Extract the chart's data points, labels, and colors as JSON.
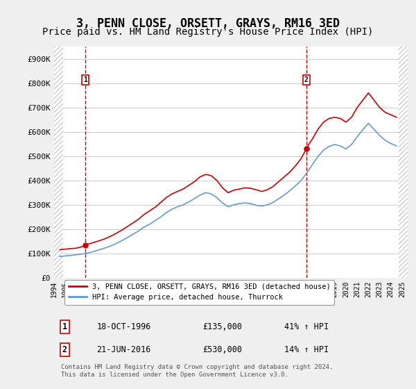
{
  "title": "3, PENN CLOSE, ORSETT, GRAYS, RM16 3ED",
  "subtitle": "Price paid vs. HM Land Registry's House Price Index (HPI)",
  "title_fontsize": 12,
  "subtitle_fontsize": 10,
  "ylabel_ticks": [
    "£0",
    "£100K",
    "£200K",
    "£300K",
    "£400K",
    "£500K",
    "£600K",
    "£700K",
    "£800K",
    "£900K"
  ],
  "ytick_values": [
    0,
    100000,
    200000,
    300000,
    400000,
    500000,
    600000,
    700000,
    800000,
    900000
  ],
  "ylim": [
    0,
    950000
  ],
  "xlim_start": 1994.0,
  "xlim_end": 2025.5,
  "xtick_years": [
    1994,
    1995,
    1996,
    1997,
    1998,
    1999,
    2000,
    2001,
    2002,
    2003,
    2004,
    2005,
    2006,
    2007,
    2008,
    2009,
    2010,
    2011,
    2012,
    2013,
    2014,
    2015,
    2016,
    2017,
    2018,
    2019,
    2020,
    2021,
    2022,
    2023,
    2024,
    2025
  ],
  "sale1_x": 1996.8,
  "sale1_y": 135000,
  "sale1_label": "1",
  "sale2_x": 2016.47,
  "sale2_y": 530000,
  "sale2_label": "2",
  "sale_color": "#cc0000",
  "hpi_color": "#6699cc",
  "vline_color": "#cc0000",
  "legend_label_red": "3, PENN CLOSE, ORSETT, GRAYS, RM16 3ED (detached house)",
  "legend_label_blue": "HPI: Average price, detached house, Thurrock",
  "table_row1": [
    "1",
    "18-OCT-1996",
    "£135,000",
    "41% ↑ HPI"
  ],
  "table_row2": [
    "2",
    "21-JUN-2016",
    "£530,000",
    "14% ↑ HPI"
  ],
  "footer": "Contains HM Land Registry data © Crown copyright and database right 2024.\nThis data is licensed under the Open Government Licence v3.0.",
  "background_color": "#f0f0f0",
  "plot_bg_color": "#ffffff",
  "hatch_color": "#dddddd",
  "red_line_data_x": [
    1994.5,
    1995.0,
    1995.5,
    1996.0,
    1996.5,
    1996.8,
    1997.0,
    1997.5,
    1998.0,
    1998.5,
    1999.0,
    1999.5,
    2000.0,
    2000.5,
    2001.0,
    2001.5,
    2002.0,
    2002.5,
    2003.0,
    2003.5,
    2004.0,
    2004.5,
    2005.0,
    2005.5,
    2006.0,
    2006.5,
    2007.0,
    2007.5,
    2008.0,
    2008.5,
    2009.0,
    2009.5,
    2010.0,
    2010.5,
    2011.0,
    2011.5,
    2012.0,
    2012.5,
    2013.0,
    2013.5,
    2014.0,
    2014.5,
    2015.0,
    2015.5,
    2016.0,
    2016.47,
    2016.5,
    2017.0,
    2017.5,
    2018.0,
    2018.5,
    2019.0,
    2019.5,
    2020.0,
    2020.5,
    2021.0,
    2021.5,
    2022.0,
    2022.5,
    2023.0,
    2023.5,
    2024.0,
    2024.5
  ],
  "red_line_data_y": [
    115000,
    118000,
    120000,
    122000,
    128000,
    135000,
    138000,
    145000,
    152000,
    160000,
    170000,
    182000,
    195000,
    210000,
    225000,
    240000,
    260000,
    275000,
    290000,
    310000,
    330000,
    345000,
    355000,
    365000,
    380000,
    395000,
    415000,
    425000,
    420000,
    400000,
    370000,
    350000,
    360000,
    365000,
    370000,
    368000,
    362000,
    355000,
    362000,
    375000,
    395000,
    415000,
    435000,
    460000,
    490000,
    530000,
    535000,
    570000,
    610000,
    640000,
    655000,
    660000,
    655000,
    640000,
    660000,
    700000,
    730000,
    760000,
    730000,
    700000,
    680000,
    670000,
    660000
  ],
  "blue_line_data_x": [
    1994.5,
    1995.0,
    1995.5,
    1996.0,
    1996.5,
    1997.0,
    1997.5,
    1998.0,
    1998.5,
    1999.0,
    1999.5,
    2000.0,
    2000.5,
    2001.0,
    2001.5,
    2002.0,
    2002.5,
    2003.0,
    2003.5,
    2004.0,
    2004.5,
    2005.0,
    2005.5,
    2006.0,
    2006.5,
    2007.0,
    2007.5,
    2008.0,
    2008.5,
    2009.0,
    2009.5,
    2010.0,
    2010.5,
    2011.0,
    2011.5,
    2012.0,
    2012.5,
    2013.0,
    2013.5,
    2014.0,
    2014.5,
    2015.0,
    2015.5,
    2016.0,
    2016.5,
    2017.0,
    2017.5,
    2018.0,
    2018.5,
    2019.0,
    2019.5,
    2020.0,
    2020.5,
    2021.0,
    2021.5,
    2022.0,
    2022.5,
    2023.0,
    2023.5,
    2024.0,
    2024.5
  ],
  "blue_line_data_y": [
    88000,
    90000,
    92000,
    95000,
    98000,
    102000,
    108000,
    115000,
    122000,
    130000,
    140000,
    152000,
    165000,
    178000,
    192000,
    208000,
    220000,
    235000,
    250000,
    268000,
    282000,
    292000,
    300000,
    312000,
    325000,
    340000,
    350000,
    345000,
    330000,
    308000,
    292000,
    300000,
    305000,
    308000,
    305000,
    298000,
    295000,
    300000,
    310000,
    325000,
    340000,
    358000,
    378000,
    400000,
    430000,
    465000,
    498000,
    525000,
    540000,
    548000,
    542000,
    530000,
    548000,
    580000,
    608000,
    635000,
    610000,
    585000,
    565000,
    552000,
    542000
  ]
}
